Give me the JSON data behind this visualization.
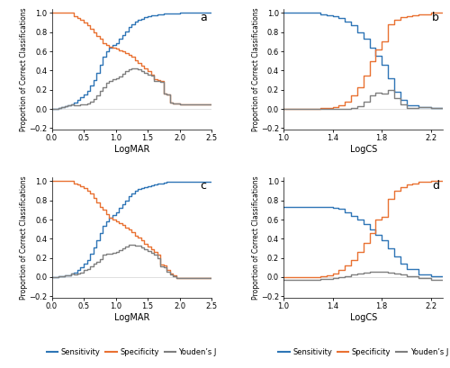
{
  "xlabel_logmar": "LogMAR",
  "xlabel_logcs": "LogCS",
  "ylabel": "Proportion of Correct Classifications",
  "colors": {
    "sensitivity": "#2E75B6",
    "specificity": "#E97132",
    "youdens": "#7F7F7F"
  },
  "legend_labels": [
    "Sensitivity",
    "Specificity",
    "Youden’s J"
  ],
  "ylim": [
    -0.22,
    1.04
  ],
  "yticks": [
    -0.2,
    0.0,
    0.2,
    0.4,
    0.6,
    0.8,
    1.0
  ],
  "panels": [
    {
      "label": "a",
      "xlim": [
        0,
        2.5
      ],
      "xticks": [
        0,
        0.5,
        1.0,
        1.5,
        2.0,
        2.5
      ],
      "xlabel": "LogMAR",
      "sens_x": [
        0.0,
        0.1,
        0.15,
        0.2,
        0.25,
        0.3,
        0.35,
        0.4,
        0.45,
        0.5,
        0.55,
        0.6,
        0.65,
        0.7,
        0.75,
        0.8,
        0.85,
        0.9,
        0.95,
        1.0,
        1.05,
        1.1,
        1.15,
        1.2,
        1.25,
        1.3,
        1.35,
        1.4,
        1.45,
        1.5,
        1.55,
        1.6,
        1.65,
        1.7,
        1.75,
        1.8,
        1.85,
        1.9,
        1.95,
        2.0,
        2.1,
        2.2,
        2.5
      ],
      "sens_y": [
        0.0,
        0.01,
        0.02,
        0.03,
        0.04,
        0.05,
        0.07,
        0.09,
        0.12,
        0.15,
        0.19,
        0.24,
        0.3,
        0.38,
        0.46,
        0.54,
        0.6,
        0.64,
        0.67,
        0.69,
        0.73,
        0.77,
        0.81,
        0.85,
        0.88,
        0.91,
        0.93,
        0.94,
        0.96,
        0.97,
        0.975,
        0.98,
        0.985,
        0.99,
        0.993,
        0.996,
        0.997,
        0.998,
        0.999,
        1.0,
        1.0,
        1.0,
        1.0
      ],
      "spec_x": [
        0.0,
        0.1,
        0.15,
        0.2,
        0.25,
        0.3,
        0.35,
        0.4,
        0.45,
        0.5,
        0.55,
        0.6,
        0.65,
        0.7,
        0.75,
        0.8,
        0.85,
        0.9,
        0.95,
        1.0,
        1.05,
        1.1,
        1.15,
        1.2,
        1.25,
        1.3,
        1.35,
        1.4,
        1.45,
        1.5,
        1.55,
        1.6,
        1.65,
        1.7,
        1.75,
        1.8,
        1.85,
        1.9,
        2.0,
        2.5
      ],
      "spec_y": [
        1.0,
        1.0,
        1.0,
        1.0,
        1.0,
        1.0,
        0.97,
        0.95,
        0.93,
        0.9,
        0.87,
        0.84,
        0.8,
        0.76,
        0.73,
        0.69,
        0.67,
        0.65,
        0.64,
        0.63,
        0.61,
        0.6,
        0.58,
        0.56,
        0.54,
        0.51,
        0.48,
        0.45,
        0.42,
        0.39,
        0.36,
        0.31,
        0.3,
        0.29,
        0.16,
        0.15,
        0.07,
        0.06,
        0.05,
        0.05
      ],
      "youd_x": [
        0.0,
        0.1,
        0.15,
        0.2,
        0.25,
        0.3,
        0.35,
        0.4,
        0.45,
        0.5,
        0.55,
        0.6,
        0.65,
        0.7,
        0.75,
        0.8,
        0.85,
        0.9,
        0.95,
        1.0,
        1.05,
        1.1,
        1.15,
        1.2,
        1.25,
        1.3,
        1.35,
        1.4,
        1.45,
        1.5,
        1.55,
        1.6,
        1.65,
        1.7,
        1.75,
        1.8,
        1.85,
        1.9,
        2.0,
        2.5
      ],
      "youd_y": [
        0.0,
        0.01,
        0.02,
        0.03,
        0.04,
        0.05,
        0.04,
        0.04,
        0.05,
        0.05,
        0.06,
        0.08,
        0.1,
        0.14,
        0.19,
        0.23,
        0.27,
        0.29,
        0.31,
        0.32,
        0.34,
        0.37,
        0.39,
        0.41,
        0.42,
        0.42,
        0.41,
        0.39,
        0.38,
        0.36,
        0.35,
        0.29,
        0.29,
        0.28,
        0.16,
        0.15,
        0.07,
        0.06,
        0.05,
        0.05
      ]
    },
    {
      "label": "b",
      "xlim": [
        1.0,
        2.3
      ],
      "xticks": [
        1.0,
        1.4,
        1.8,
        2.2
      ],
      "xlabel": "LogCS",
      "sens_x": [
        1.0,
        1.1,
        1.2,
        1.3,
        1.35,
        1.4,
        1.45,
        1.5,
        1.55,
        1.6,
        1.65,
        1.7,
        1.75,
        1.8,
        1.85,
        1.9,
        1.95,
        2.0,
        2.1,
        2.2,
        2.3
      ],
      "sens_y": [
        1.0,
        1.0,
        1.0,
        0.99,
        0.98,
        0.97,
        0.95,
        0.91,
        0.87,
        0.8,
        0.73,
        0.64,
        0.55,
        0.46,
        0.32,
        0.18,
        0.09,
        0.04,
        0.02,
        0.01,
        0.01
      ],
      "spec_x": [
        1.0,
        1.1,
        1.2,
        1.3,
        1.35,
        1.4,
        1.45,
        1.5,
        1.55,
        1.6,
        1.65,
        1.7,
        1.75,
        1.8,
        1.85,
        1.9,
        1.95,
        2.0,
        2.05,
        2.1,
        2.2,
        2.3
      ],
      "spec_y": [
        0.0,
        0.0,
        0.0,
        0.01,
        0.01,
        0.02,
        0.04,
        0.08,
        0.14,
        0.23,
        0.35,
        0.5,
        0.62,
        0.7,
        0.88,
        0.93,
        0.96,
        0.97,
        0.98,
        0.99,
        1.0,
        1.0
      ],
      "youd_x": [
        1.0,
        1.1,
        1.2,
        1.3,
        1.35,
        1.4,
        1.45,
        1.5,
        1.55,
        1.6,
        1.65,
        1.7,
        1.75,
        1.8,
        1.85,
        1.9,
        1.95,
        2.0,
        2.1,
        2.2,
        2.3
      ],
      "youd_y": [
        0.0,
        0.0,
        0.0,
        0.0,
        0.0,
        0.0,
        0.0,
        0.0,
        0.01,
        0.03,
        0.08,
        0.14,
        0.17,
        0.16,
        0.2,
        0.11,
        0.05,
        0.01,
        0.02,
        0.01,
        0.01
      ]
    },
    {
      "label": "c",
      "xlim": [
        0,
        2.5
      ],
      "xticks": [
        0,
        0.5,
        1.0,
        1.5,
        2.0,
        2.5
      ],
      "xlabel": "LogMAR",
      "sens_x": [
        0.0,
        0.1,
        0.2,
        0.3,
        0.35,
        0.4,
        0.45,
        0.5,
        0.55,
        0.6,
        0.65,
        0.7,
        0.75,
        0.8,
        0.85,
        0.9,
        0.95,
        1.0,
        1.05,
        1.1,
        1.15,
        1.2,
        1.25,
        1.3,
        1.35,
        1.4,
        1.45,
        1.5,
        1.55,
        1.6,
        1.65,
        1.7,
        1.75,
        1.8,
        1.85,
        1.9,
        1.95,
        2.0,
        2.5
      ],
      "sens_y": [
        0.0,
        0.01,
        0.02,
        0.04,
        0.05,
        0.07,
        0.1,
        0.14,
        0.18,
        0.24,
        0.31,
        0.38,
        0.46,
        0.53,
        0.58,
        0.62,
        0.65,
        0.68,
        0.72,
        0.76,
        0.8,
        0.84,
        0.87,
        0.9,
        0.92,
        0.93,
        0.94,
        0.95,
        0.96,
        0.97,
        0.975,
        0.98,
        0.985,
        0.99,
        0.993,
        0.997,
        0.998,
        0.999,
        0.999
      ],
      "spec_x": [
        0.0,
        0.1,
        0.2,
        0.3,
        0.35,
        0.4,
        0.45,
        0.5,
        0.55,
        0.6,
        0.65,
        0.7,
        0.75,
        0.8,
        0.85,
        0.9,
        0.95,
        1.0,
        1.05,
        1.1,
        1.15,
        1.2,
        1.25,
        1.3,
        1.35,
        1.4,
        1.45,
        1.5,
        1.55,
        1.6,
        1.65,
        1.7,
        1.75,
        1.8,
        1.85,
        1.9,
        1.95,
        2.0,
        2.5
      ],
      "spec_y": [
        1.0,
        1.0,
        1.0,
        1.0,
        0.98,
        0.97,
        0.95,
        0.93,
        0.9,
        0.87,
        0.83,
        0.78,
        0.73,
        0.7,
        0.66,
        0.62,
        0.6,
        0.58,
        0.56,
        0.54,
        0.52,
        0.5,
        0.47,
        0.43,
        0.41,
        0.38,
        0.35,
        0.32,
        0.29,
        0.26,
        0.23,
        0.13,
        0.12,
        0.07,
        0.04,
        0.02,
        -0.01,
        -0.01,
        -0.01
      ],
      "youd_x": [
        0.0,
        0.1,
        0.2,
        0.3,
        0.35,
        0.4,
        0.45,
        0.5,
        0.55,
        0.6,
        0.65,
        0.7,
        0.75,
        0.8,
        0.85,
        0.9,
        0.95,
        1.0,
        1.05,
        1.1,
        1.15,
        1.2,
        1.25,
        1.3,
        1.35,
        1.4,
        1.45,
        1.5,
        1.55,
        1.6,
        1.65,
        1.7,
        1.75,
        1.8,
        1.85,
        1.9,
        1.95,
        2.0,
        2.5
      ],
      "youd_y": [
        0.0,
        0.01,
        0.02,
        0.04,
        0.03,
        0.04,
        0.05,
        0.07,
        0.08,
        0.11,
        0.14,
        0.16,
        0.19,
        0.23,
        0.24,
        0.24,
        0.25,
        0.26,
        0.28,
        0.3,
        0.32,
        0.34,
        0.34,
        0.33,
        0.33,
        0.31,
        0.29,
        0.27,
        0.25,
        0.23,
        0.2,
        0.11,
        0.1,
        0.06,
        0.03,
        0.01,
        -0.01,
        -0.01,
        -0.01
      ]
    },
    {
      "label": "d",
      "xlim": [
        1.0,
        2.3
      ],
      "xticks": [
        1.0,
        1.4,
        1.8,
        2.2
      ],
      "xlabel": "LogCS",
      "sens_x": [
        1.0,
        1.1,
        1.2,
        1.3,
        1.35,
        1.4,
        1.45,
        1.5,
        1.55,
        1.6,
        1.65,
        1.7,
        1.75,
        1.8,
        1.85,
        1.9,
        1.95,
        2.0,
        2.1,
        2.2,
        2.3
      ],
      "sens_y": [
        0.73,
        0.73,
        0.73,
        0.73,
        0.73,
        0.72,
        0.71,
        0.68,
        0.64,
        0.6,
        0.55,
        0.5,
        0.44,
        0.38,
        0.3,
        0.22,
        0.14,
        0.08,
        0.03,
        0.01,
        0.01
      ],
      "spec_x": [
        1.0,
        1.1,
        1.2,
        1.3,
        1.35,
        1.4,
        1.45,
        1.5,
        1.55,
        1.6,
        1.65,
        1.7,
        1.75,
        1.8,
        1.85,
        1.9,
        1.95,
        2.0,
        2.05,
        2.1,
        2.2,
        2.3
      ],
      "spec_y": [
        0.0,
        0.0,
        0.0,
        0.01,
        0.02,
        0.04,
        0.07,
        0.12,
        0.18,
        0.26,
        0.36,
        0.46,
        0.6,
        0.63,
        0.82,
        0.9,
        0.94,
        0.97,
        0.98,
        0.99,
        1.0,
        1.0
      ],
      "youd_x": [
        1.0,
        1.1,
        1.2,
        1.3,
        1.35,
        1.4,
        1.45,
        1.5,
        1.55,
        1.6,
        1.65,
        1.7,
        1.75,
        1.8,
        1.85,
        1.9,
        1.95,
        2.0,
        2.1,
        2.2,
        2.3
      ],
      "youd_y": [
        -0.03,
        -0.03,
        -0.03,
        -0.02,
        -0.02,
        -0.01,
        0.0,
        0.01,
        0.03,
        0.04,
        0.05,
        0.06,
        0.06,
        0.06,
        0.05,
        0.04,
        0.03,
        0.01,
        -0.01,
        -0.03,
        -0.03
      ]
    }
  ]
}
